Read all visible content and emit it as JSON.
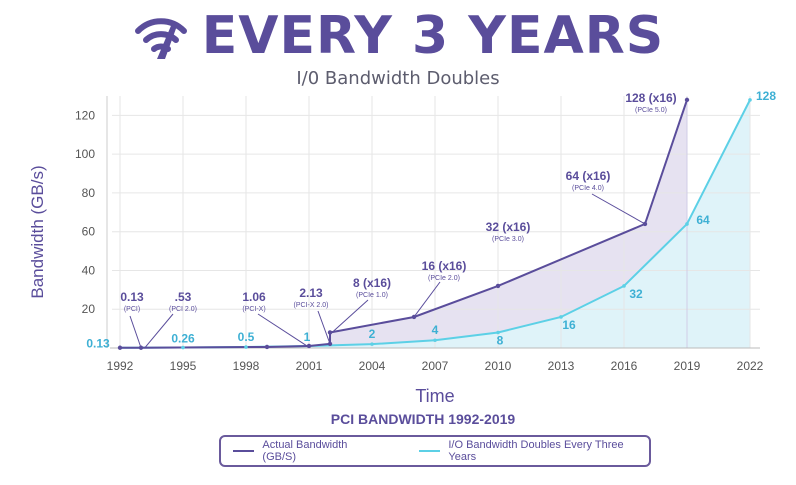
{
  "header": {
    "title": "EVERY 3 YEARS",
    "subtitle": "I/0 Bandwidth Doubles",
    "icon": "wifi-icon"
  },
  "colors": {
    "actual": "#5a4d9b",
    "doubles": "#5cd0e6",
    "actual_fill": "#e3dff0",
    "doubles_fill": "#dff3f9",
    "grid": "#e6e6e6"
  },
  "chart_data": {
    "type": "line",
    "title": "PCI BANDWIDTH 1992-2019",
    "xlabel": "Time",
    "ylabel": "Bandwidth (GB/s)",
    "xlim": [
      1992,
      2022
    ],
    "ylim": [
      0,
      130
    ],
    "x_ticks": [
      "1992",
      "1995",
      "1998",
      "2001",
      "2004",
      "2007",
      "2010",
      "2013",
      "2016",
      "2019",
      "2022"
    ],
    "y_ticks": [
      "20",
      "40",
      "60",
      "80",
      "100",
      "120"
    ],
    "series": [
      {
        "name": "Actual Bandwidth (GB/S)",
        "points": [
          {
            "x": 1992,
            "y": 0.13
          },
          {
            "x": 1993,
            "y": 0.13,
            "label": "0.13",
            "sublabel": "(PCI)"
          },
          {
            "x": 1999,
            "y": 0.53,
            "label": ".53",
            "sublabel": "(PCI 2.0)"
          },
          {
            "x": 2001,
            "y": 1.06,
            "label": "1.06",
            "sublabel": "(PCI-X)"
          },
          {
            "x": 2002,
            "y": 2.13,
            "label": "2.13",
            "sublabel": "(PCI-X 2.0)"
          },
          {
            "x": 2002,
            "y": 8,
            "label": "8 (x16)",
            "sublabel": "(PCIe 1.0)"
          },
          {
            "x": 2006,
            "y": 16,
            "label": "16 (x16)",
            "sublabel": "(PCIe 2.0)"
          },
          {
            "x": 2010,
            "y": 32,
            "label": "32 (x16)",
            "sublabel": "(PCIe 3.0)"
          },
          {
            "x": 2017,
            "y": 64,
            "label": "64 (x16)",
            "sublabel": "(PCIe 4.0)"
          },
          {
            "x": 2019,
            "y": 128,
            "label": "128 (x16)",
            "sublabel": "(PCIe 5.0)"
          }
        ]
      },
      {
        "name": "I/O Bandwidth Doubles Every Three Years",
        "points": [
          {
            "x": 1992,
            "y": 0.13,
            "label": "0.13"
          },
          {
            "x": 1995,
            "y": 0.26,
            "label": "0.26"
          },
          {
            "x": 1998,
            "y": 0.5,
            "label": "0.5"
          },
          {
            "x": 2001,
            "y": 1,
            "label": "1"
          },
          {
            "x": 2004,
            "y": 2,
            "label": "2"
          },
          {
            "x": 2007,
            "y": 4,
            "label": "4"
          },
          {
            "x": 2010,
            "y": 8,
            "label": "8"
          },
          {
            "x": 2013,
            "y": 16,
            "label": "16"
          },
          {
            "x": 2016,
            "y": 32,
            "label": "32"
          },
          {
            "x": 2019,
            "y": 64,
            "label": "64"
          },
          {
            "x": 2022,
            "y": 128,
            "label": "128"
          }
        ]
      }
    ]
  }
}
